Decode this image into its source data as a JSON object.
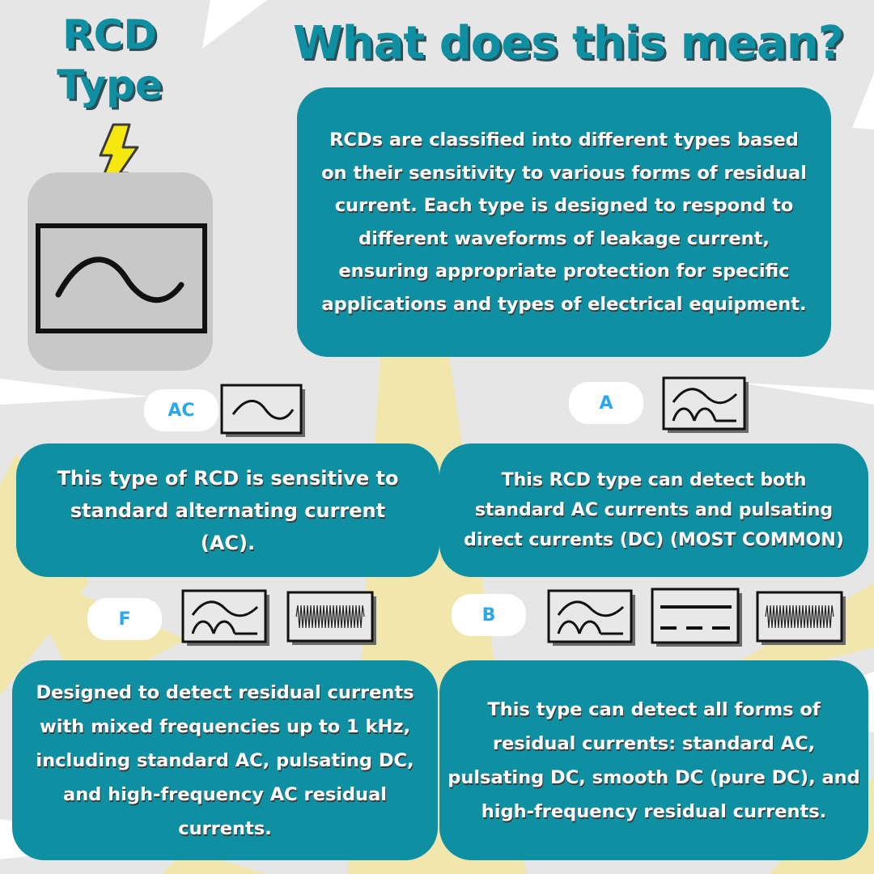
{
  "title": "RCD Type",
  "heading": "What does this mean?",
  "intro": "RCDs are classified into different types based on their sensitivity to various forms of residual current. Each type is designed to respond to different waveforms of leakage current, ensuring appropriate protection for specific applications and types of electrical equipment.",
  "types": [
    {
      "label": "AC",
      "description": "This type of RCD is sensitive to standard alternating current (AC).",
      "symbols": [
        "sine-wave-icon"
      ]
    },
    {
      "label": "A",
      "description": "This RCD type can detect both standard AC currents and pulsating direct currents (DC) (MOST COMMON)",
      "symbols": [
        "sine-pulsating-dc-icon"
      ]
    },
    {
      "label": "F",
      "description": "Designed to detect residual currents with mixed frequencies up to 1 kHz, including standard AC, pulsating DC, and high-frequency AC residual currents.",
      "symbols": [
        "sine-pulsating-dc-icon",
        "high-frequency-icon"
      ]
    },
    {
      "label": "B",
      "description": "This type can detect all forms of residual currents: standard AC, pulsating DC, smooth DC (pure DC), and high-frequency residual currents.",
      "symbols": [
        "sine-pulsating-dc-icon",
        "smooth-dc-icon",
        "high-frequency-icon"
      ]
    }
  ],
  "colors": {
    "background": "#e6e6e6",
    "panel": "#0e8fa2",
    "pill_text": "#2aa8ee",
    "bolt": "#f6e80e",
    "rays": "#f1e7ad",
    "icon_card": "#c8c8c8"
  }
}
